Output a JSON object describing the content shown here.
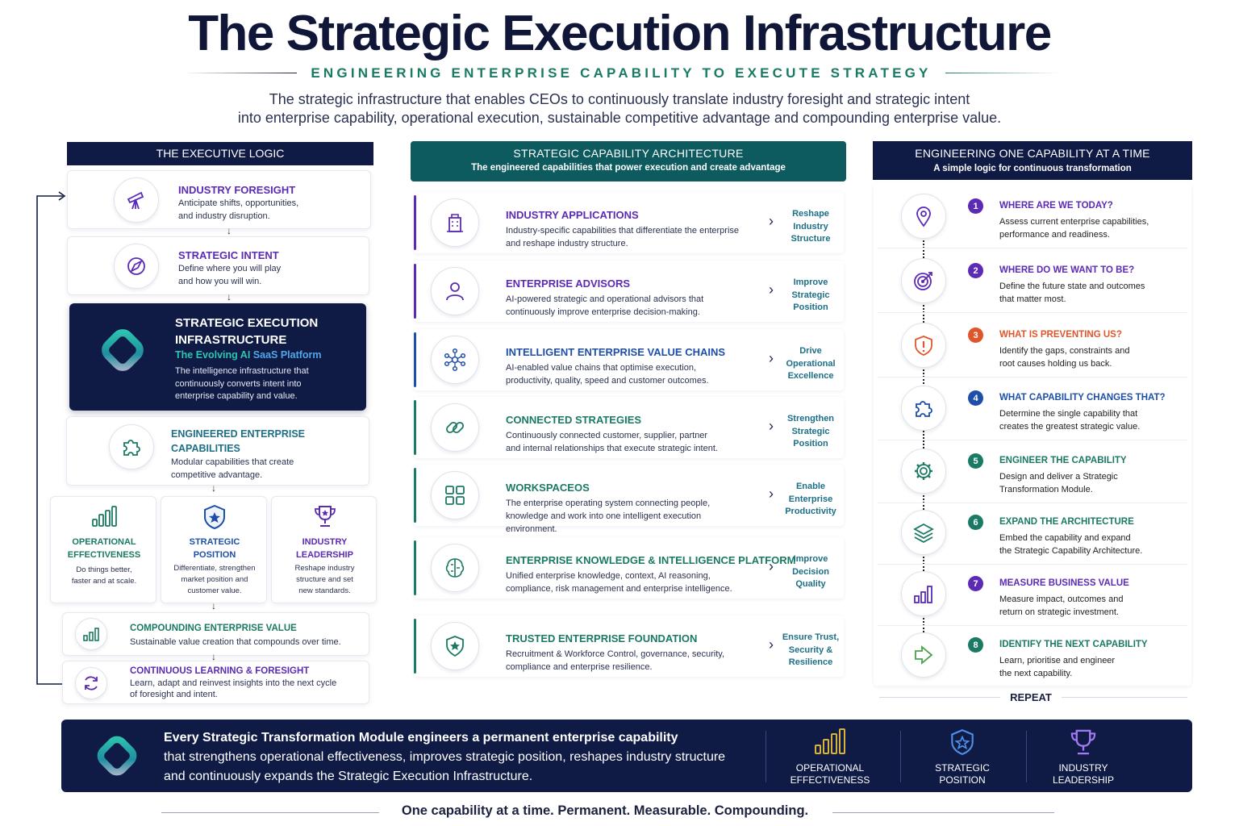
{
  "header": {
    "title": "The Strategic Execution Infrastructure",
    "subtitle": "ENGINEERING ENTERPRISE CAPABILITY TO EXECUTE STRATEGY",
    "description_line1": "The strategic infrastructure that enables CEOs to continuously translate industry foresight and strategic intent",
    "description_line2": "into enterprise capability, operational execution, sustainable competitive advantage and compounding enterprise value."
  },
  "left": {
    "heading": "THE EXECUTIVE LOGIC",
    "foresight": {
      "title": "INDUSTRY FORESIGHT",
      "line1": "Anticipate shifts, opportunities,",
      "line2": "and industry disruption."
    },
    "intent": {
      "title": "STRATEGIC INTENT",
      "line1": "Define where you will play",
      "line2": "and how you will win."
    },
    "sei": {
      "title1": "STRATEGIC EXECUTION",
      "title2": "INFRASTRUCTURE",
      "tag_a": "The Evolving AI ",
      "tag_b": "SaaS Platform",
      "line1": "The intelligence infrastructure that",
      "line2": "continuously converts intent into",
      "line3": "enterprise capability and value."
    },
    "engineered": {
      "title1": "ENGINEERED ENTERPRISE",
      "title2": "CAPABILITIES",
      "line1": "Modular capabilities that create",
      "line2": "competitive advantage."
    },
    "trio": [
      {
        "title1": "OPERATIONAL",
        "title2": "EFFECTIVENESS",
        "line1": "Do things better,",
        "line2": "faster and at scale.",
        "line3": ""
      },
      {
        "title1": "STRATEGIC",
        "title2": "POSITION",
        "line1": "Differentiate, strengthen",
        "line2": "market position and",
        "line3": "customer value."
      },
      {
        "title1": "INDUSTRY",
        "title2": "LEADERSHIP",
        "line1": "Reshape industry",
        "line2": "structure and set",
        "line3": "new standards."
      }
    ],
    "compounding": {
      "title": "COMPOUNDING ENTERPRISE VALUE",
      "line1": "Sustainable value creation that compounds over time."
    },
    "learning": {
      "title": "CONTINUOUS LEARNING & FORESIGHT",
      "line1": "Learn, adapt and reinvest insights into the next cycle",
      "line2": "of foresight and intent."
    }
  },
  "middle": {
    "heading": "STRATEGIC CAPABILITY ARCHITECTURE",
    "subheading": "The engineered capabilities that power execution and create advantage",
    "rows": [
      {
        "title": "INDUSTRY APPLICATIONS",
        "line1": "Industry-specific capabilities that differentiate the enterprise",
        "line2": "and reshape industry structure.",
        "line3": "",
        "out1": "Reshape",
        "out2": "Industry",
        "out3": "Structure"
      },
      {
        "title": "ENTERPRISE ADVISORS",
        "line1": "AI-powered strategic and operational advisors that",
        "line2": "continuously improve enterprise decision-making.",
        "line3": "",
        "out1": "Improve",
        "out2": "Strategic",
        "out3": "Position"
      },
      {
        "title": "INTELLIGENT ENTERPRISE VALUE CHAINS",
        "line1": "AI-enabled value chains that optimise execution,",
        "line2": "productivity, quality, speed and customer outcomes.",
        "line3": "",
        "out1": "Drive",
        "out2": "Operational",
        "out3": "Excellence"
      },
      {
        "title": "CONNECTED STRATEGIES",
        "line1": "Continuously connected customer, supplier, partner",
        "line2": "and internal relationships that execute strategic intent.",
        "line3": "",
        "out1": "Strengthen",
        "out2": "Strategic",
        "out3": "Position"
      },
      {
        "title": "WORKSPACEOS",
        "line1": "The enterprise operating system connecting people,",
        "line2": "knowledge and work into one intelligent execution",
        "line3": "environment.",
        "out1": "Enable",
        "out2": "Enterprise",
        "out3": "Productivity"
      },
      {
        "title": "ENTERPRISE KNOWLEDGE & INTELLIGENCE PLATFORM",
        "line1": "Unified enterprise knowledge, context, AI reasoning,",
        "line2": "compliance, risk management and enterprise intelligence.",
        "line3": "",
        "out1": "Improve",
        "out2": "Decision",
        "out3": "Quality"
      },
      {
        "title": "TRUSTED ENTERPRISE FOUNDATION",
        "line1": "Recruitment & Workforce Control, governance, security,",
        "line2": "compliance and enterprise resilience.",
        "line3": "",
        "out1": "Ensure Trust,",
        "out2": "Security &",
        "out3": "Resilience"
      }
    ]
  },
  "right": {
    "heading": "ENGINEERING ONE CAPABILITY AT A TIME",
    "subheading": "A simple logic for continuous transformation",
    "steps": [
      {
        "num": "1",
        "title": "WHERE ARE WE TODAY?",
        "line1": "Assess current enterprise capabilities,",
        "line2": "performance and readiness."
      },
      {
        "num": "2",
        "title": "WHERE DO WE WANT TO BE?",
        "line1": "Define the future state and outcomes",
        "line2": "that matter most."
      },
      {
        "num": "3",
        "title": "WHAT IS PREVENTING US?",
        "line1": "Identify the gaps, constraints and",
        "line2": "root causes holding us back."
      },
      {
        "num": "4",
        "title": "WHAT CAPABILITY CHANGES THAT?",
        "line1": "Determine the single capability that",
        "line2": "creates the greatest strategic value."
      },
      {
        "num": "5",
        "title": "ENGINEER THE CAPABILITY",
        "line1": "Design and deliver a Strategic",
        "line2": "Transformation Module."
      },
      {
        "num": "6",
        "title": "EXPAND THE ARCHITECTURE",
        "line1": "Embed the capability and expand",
        "line2": "the Strategic Capability Architecture."
      },
      {
        "num": "7",
        "title": "MEASURE BUSINESS VALUE",
        "line1": "Measure impact, outcomes and",
        "line2": "return on strategic investment."
      },
      {
        "num": "8",
        "title": "IDENTIFY THE NEXT CAPABILITY",
        "line1": "Learn, prioritise and engineer",
        "line2": "the next capability."
      }
    ],
    "repeat": "REPEAT"
  },
  "footer": {
    "lead": "Every Strategic Transformation Module engineers a permanent enterprise capability",
    "line2": "that strengthens operational effectiveness, improves strategic position, reshapes industry structure",
    "line3": "and continuously expands the Strategic Execution Infrastructure.",
    "badges": [
      {
        "line1": "OPERATIONAL",
        "line2": "EFFECTIVENESS"
      },
      {
        "line1": "STRATEGIC",
        "line2": "POSITION"
      },
      {
        "line1": "INDUSTRY",
        "line2": "LEADERSHIP"
      }
    ],
    "tagline": "One capability at a time. Permanent. Measurable. Compounding."
  },
  "colors": {
    "navy": "#0f1b45",
    "teal": "#1a7a63",
    "purple": "#5b2bb5",
    "blue": "#1e4fa8",
    "orange": "#e0562a"
  }
}
